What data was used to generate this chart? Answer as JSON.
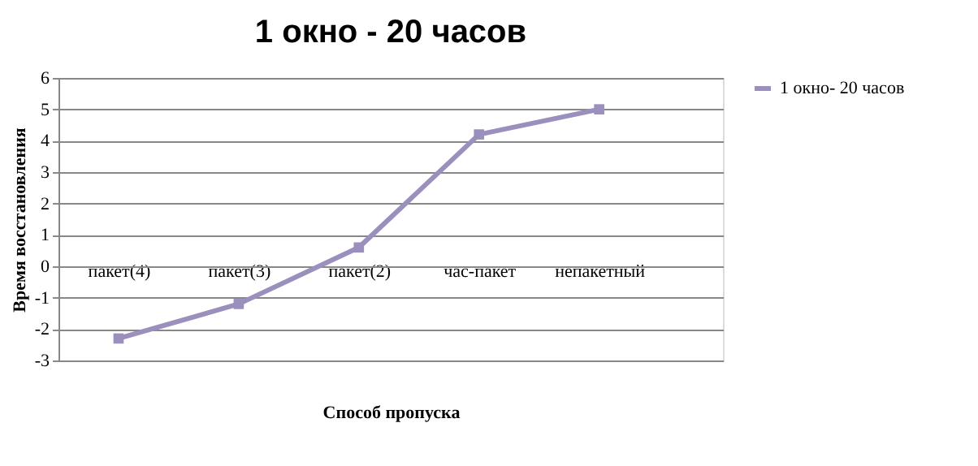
{
  "chart_data": {
    "type": "line",
    "title": "1 окно - 20 часов",
    "xlabel": "Способ пропуска",
    "ylabel": "Время восстановления",
    "categories": [
      "пакет(4)",
      "пакет(3)",
      "пакет(2)",
      "час-пакет",
      "непакетный"
    ],
    "series": [
      {
        "name": "1 окно- 20 часов",
        "color": "#9b8fbd",
        "values": [
          -2.3,
          -1.2,
          0.6,
          4.2,
          5.0
        ]
      }
    ],
    "ylim": [
      -3,
      6
    ],
    "yticks": [
      -3,
      -2,
      -1,
      0,
      1,
      2,
      3,
      4,
      5,
      6
    ],
    "grid": "y",
    "legend": "right",
    "marker": "square",
    "line_style": "solid"
  }
}
